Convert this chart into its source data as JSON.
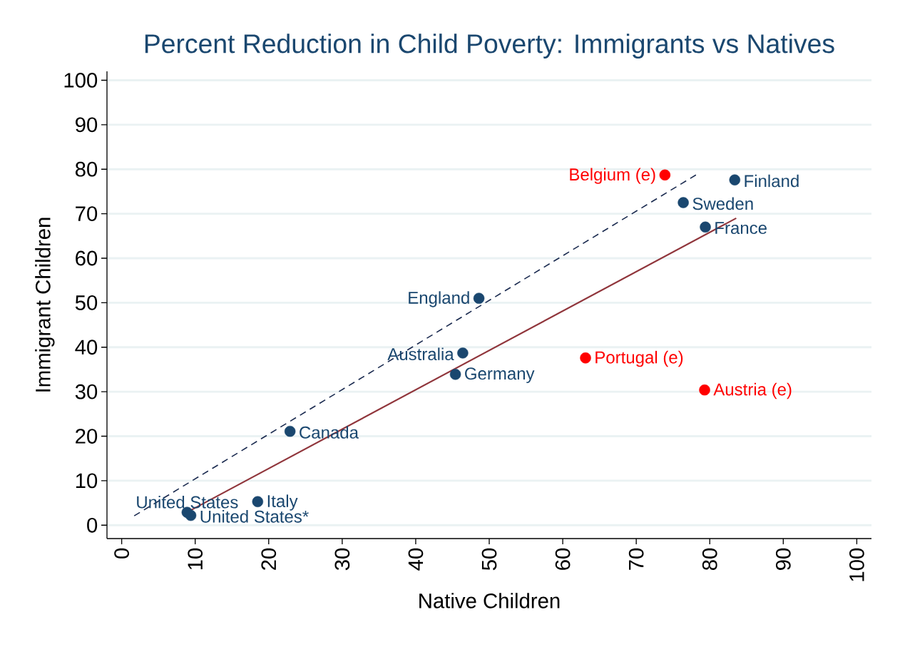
{
  "chart_data": {
    "type": "scatter",
    "title": "Percent Reduction in Child Poverty: Immigrants vs Natives",
    "xlabel": "Native Children",
    "ylabel": "Immigrant Children",
    "xlim": [
      -2,
      102
    ],
    "ylim": [
      -3,
      102
    ],
    "xticks": [
      0,
      10,
      20,
      30,
      40,
      50,
      60,
      70,
      80,
      90,
      100
    ],
    "yticks": [
      0,
      10,
      20,
      30,
      40,
      50,
      60,
      70,
      80,
      90,
      100
    ],
    "grid": "y",
    "marker": "circle",
    "series": [
      {
        "color": "#1a476f",
        "x": [
          8.9,
          9.4,
          18.5,
          22.9,
          45.4,
          46.4,
          48.6,
          83.4,
          76.4,
          79.4
        ],
        "values": [
          2.9,
          2.2,
          5.3,
          21.1,
          33.9,
          38.7,
          51.0,
          77.6,
          72.5,
          67.0
        ]
      },
      {
        "color": "#ff0000",
        "x": [
          63.1,
          79.3,
          73.9
        ],
        "values": [
          37.6,
          30.4,
          78.7
        ]
      },
      {
        "type": "line",
        "color": "#90353b",
        "marker": "none",
        "line_style": "solid",
        "x": [
          9.2,
          83.6
        ],
        "values": [
          3.2,
          69.0
        ]
      },
      {
        "type": "line",
        "color": "#1a2a4f",
        "marker": "none",
        "line_style": "dashed",
        "x": [
          1.7,
          78.3
        ],
        "values": [
          2.1,
          78.9
        ]
      }
    ],
    "annotations": [
      {
        "text": "United States",
        "x": 8.9,
        "y": 2.9
      },
      {
        "text": "United States*",
        "x": 9.4,
        "y": 2.2
      },
      {
        "text": "Italy",
        "x": 18.5,
        "y": 5.3
      },
      {
        "text": "Canada",
        "x": 22.9,
        "y": 21.1
      },
      {
        "text": "Germany",
        "x": 45.4,
        "y": 33.9
      },
      {
        "text": "Australia",
        "x": 46.4,
        "y": 38.7
      },
      {
        "text": "England",
        "x": 48.6,
        "y": 51.0
      },
      {
        "text": "Finland",
        "x": 83.4,
        "y": 77.6
      },
      {
        "text": "Sweden",
        "x": 76.4,
        "y": 72.5
      },
      {
        "text": "France",
        "x": 79.4,
        "y": 67.0
      },
      {
        "text": "Portugal (e)",
        "x": 63.1,
        "y": 37.6
      },
      {
        "text": "Austria (e)",
        "x": 79.3,
        "y": 30.4
      },
      {
        "text": "Belgium (e)",
        "x": 73.9,
        "y": 78.7
      }
    ]
  }
}
